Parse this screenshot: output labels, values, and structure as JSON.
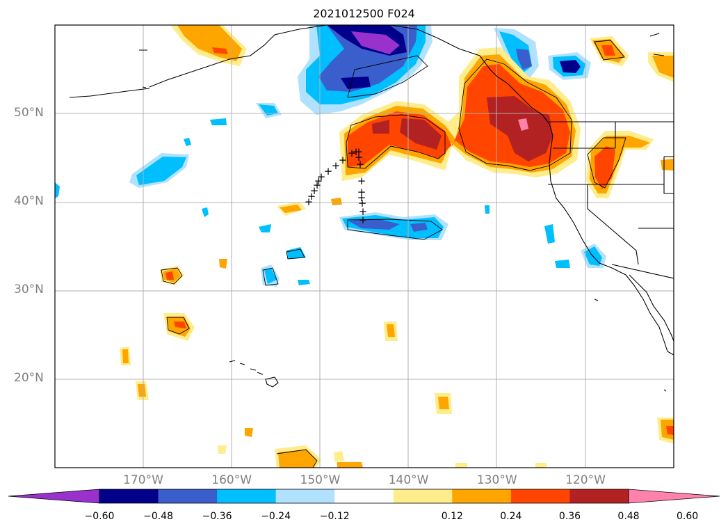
{
  "title": "2021012500 F024",
  "lat_labels": [
    {
      "text": "50°N",
      "lat": 50
    },
    {
      "text": "40°N",
      "lat": 40
    },
    {
      "text": "30°N",
      "lat": 30
    },
    {
      "text": "20°N",
      "lat": 20
    }
  ],
  "lon_labels": [
    {
      "text": "170°W",
      "lon": -170
    },
    {
      "text": "160°W",
      "lon": -160
    },
    {
      "text": "150°W",
      "lon": -150
    },
    {
      "text": "140°W",
      "lon": -140
    },
    {
      "text": "130°W",
      "lon": -130
    },
    {
      "text": "120°W",
      "lon": -120
    }
  ],
  "colorbar": {
    "labels": [
      "−0.60",
      "−0.48",
      "−0.36",
      "−0.24",
      "−0.12",
      "0.12",
      "0.24",
      "0.36",
      "0.48",
      "0.60"
    ],
    "colors": [
      "#9932cc",
      "#00008b",
      "#3a5fcd",
      "#00bfff",
      "#b0e2ff",
      "#ffffff",
      "#ffec8b",
      "#ffa500",
      "#ff4500",
      "#b22222",
      "#ff82ab"
    ]
  },
  "colors": {
    "land_outline": "#000000",
    "grid": "#b0b0b0",
    "track_marker": "#000000"
  },
  "track_marker_symbol": "+"
}
